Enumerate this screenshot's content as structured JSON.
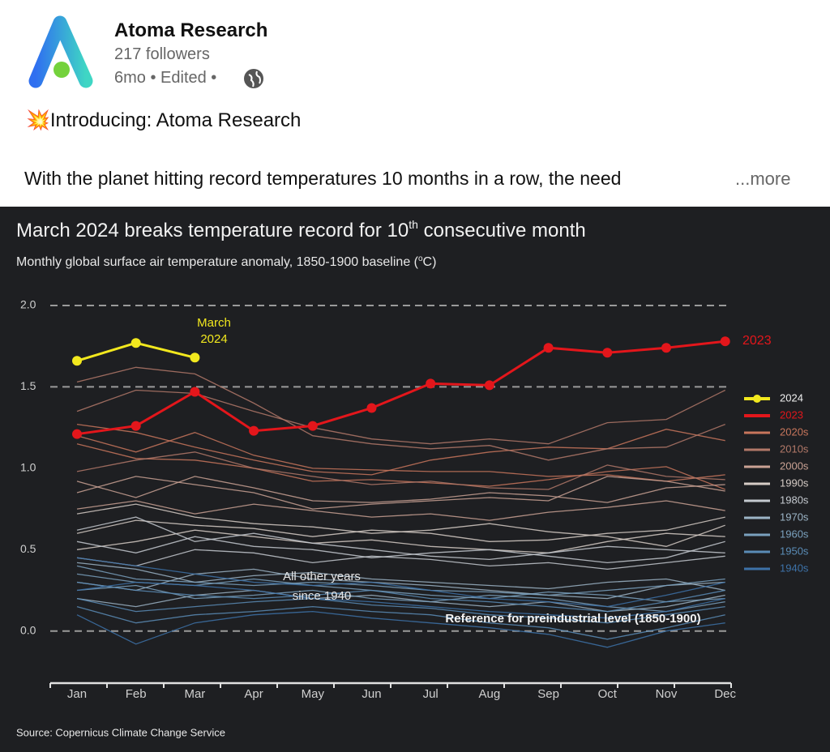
{
  "post": {
    "author": "Atoma Research",
    "followers": "217 followers",
    "time": "6mo",
    "edited": "Edited",
    "headline": "Introducing: Atoma Research",
    "body": "With the planet hitting record temperatures 10 months in a row, the need",
    "more": "...more"
  },
  "chart_data": {
    "type": "line",
    "title": [
      "March 2024 breaks temperature record for 10",
      "th",
      " consecutive month"
    ],
    "subtitle": [
      "Monthly global surface air temperature anomaly, 1850-1900 baseline (",
      "o",
      "C)"
    ],
    "source": "Source: Copernicus Climate Change Service",
    "annotations": {
      "march": [
        "March",
        "2024"
      ],
      "others": [
        "All other years",
        "since 1940"
      ],
      "reference": "Reference for preindustrial level (1850-1900)"
    },
    "categories": [
      "Jan",
      "Feb",
      "Mar",
      "Apr",
      "May",
      "Jun",
      "Jul",
      "Aug",
      "Sep",
      "Oct",
      "Nov",
      "Dec"
    ],
    "ylim": [
      -0.3,
      2.0
    ],
    "yticks": [
      {
        "value": 2,
        "label": "2.0"
      },
      1.5,
      {
        "value": 1,
        "label": "1.0"
      },
      0.5,
      {
        "value": 0,
        "label": "0.0"
      }
    ],
    "grid_at": [
      2,
      1.5,
      0
    ],
    "series": [
      {
        "name": "2024",
        "color": "#f2e81e",
        "values": [
          1.66,
          1.77,
          1.68,
          null,
          null,
          null,
          null,
          null,
          null,
          null,
          null,
          null
        ]
      },
      {
        "name": "2023",
        "color": "#e3161b",
        "values": [
          1.21,
          1.26,
          1.47,
          1.23,
          1.26,
          1.37,
          1.52,
          1.51,
          1.74,
          1.71,
          1.74,
          1.78
        ]
      }
    ],
    "decades": [
      {
        "name": "2020s",
        "color": "#c8765c",
        "lines": [
          [
            1.27,
            1.22,
            1.13,
            1.05,
            0.98,
            0.96,
            1.05,
            1.1,
            1.13,
            1.12,
            1.24,
            1.17
          ],
          [
            1.15,
            1.06,
            1.05,
            1.0,
            0.92,
            0.93,
            0.91,
            0.89,
            0.93,
            0.98,
            1.01,
            0.87
          ],
          [
            1.2,
            1.1,
            1.22,
            1.08,
            1.0,
            0.99,
            0.98,
            0.98,
            0.95,
            0.96,
            0.92,
            0.96
          ]
        ]
      },
      {
        "name": "2010s",
        "color": "#b27868",
        "lines": [
          [
            1.53,
            1.62,
            1.58,
            1.4,
            1.2,
            1.15,
            1.12,
            1.14,
            1.05,
            1.12,
            1.13,
            1.27
          ],
          [
            1.35,
            1.48,
            1.46,
            1.35,
            1.25,
            1.18,
            1.15,
            1.18,
            1.15,
            1.28,
            1.3,
            1.48
          ],
          [
            0.98,
            1.05,
            1.1,
            1.0,
            0.95,
            0.9,
            0.92,
            0.88,
            0.87,
            1.02,
            0.95,
            0.93
          ]
        ]
      },
      {
        "name": "2000s",
        "color": "#caa294",
        "lines": [
          [
            0.85,
            0.95,
            0.9,
            0.85,
            0.75,
            0.78,
            0.8,
            0.82,
            0.8,
            0.95,
            0.92,
            0.86
          ],
          [
            0.92,
            0.82,
            0.95,
            0.88,
            0.8,
            0.79,
            0.81,
            0.85,
            0.83,
            0.79,
            0.88,
            0.9
          ],
          [
            0.75,
            0.8,
            0.72,
            0.78,
            0.74,
            0.7,
            0.72,
            0.68,
            0.73,
            0.76,
            0.8,
            0.74
          ]
        ]
      },
      {
        "name": "1990s",
        "color": "#d6ccc6",
        "lines": [
          [
            0.6,
            0.68,
            0.65,
            0.63,
            0.58,
            0.62,
            0.6,
            0.55,
            0.56,
            0.6,
            0.62,
            0.7
          ],
          [
            0.72,
            0.78,
            0.7,
            0.66,
            0.64,
            0.6,
            0.62,
            0.66,
            0.61,
            0.58,
            0.52,
            0.65
          ],
          [
            0.5,
            0.55,
            0.62,
            0.58,
            0.54,
            0.56,
            0.52,
            0.5,
            0.48,
            0.55,
            0.6,
            0.58
          ]
        ]
      },
      {
        "name": "1980s",
        "color": "#c4c9cf",
        "lines": [
          [
            0.55,
            0.48,
            0.58,
            0.52,
            0.5,
            0.45,
            0.48,
            0.5,
            0.46,
            0.42,
            0.45,
            0.55
          ],
          [
            0.62,
            0.7,
            0.55,
            0.6,
            0.54,
            0.5,
            0.46,
            0.44,
            0.48,
            0.52,
            0.5,
            0.48
          ],
          [
            0.45,
            0.4,
            0.5,
            0.48,
            0.42,
            0.46,
            0.44,
            0.4,
            0.42,
            0.38,
            0.42,
            0.46
          ]
        ]
      },
      {
        "name": "1970s",
        "color": "#9cb4c6",
        "lines": [
          [
            0.3,
            0.25,
            0.35,
            0.38,
            0.32,
            0.3,
            0.28,
            0.25,
            0.22,
            0.2,
            0.28,
            0.3
          ],
          [
            0.42,
            0.38,
            0.3,
            0.34,
            0.36,
            0.32,
            0.3,
            0.28,
            0.26,
            0.3,
            0.32,
            0.25
          ],
          [
            0.2,
            0.15,
            0.22,
            0.25,
            0.2,
            0.22,
            0.18,
            0.15,
            0.18,
            0.12,
            0.15,
            0.22
          ]
        ]
      },
      {
        "name": "1960s",
        "color": "#7aa1be",
        "lines": [
          [
            0.35,
            0.3,
            0.28,
            0.32,
            0.28,
            0.25,
            0.22,
            0.2,
            0.24,
            0.22,
            0.18,
            0.2
          ],
          [
            0.25,
            0.28,
            0.2,
            0.22,
            0.25,
            0.2,
            0.18,
            0.22,
            0.2,
            0.15,
            0.12,
            0.18
          ],
          [
            0.4,
            0.32,
            0.3,
            0.28,
            0.3,
            0.28,
            0.25,
            0.24,
            0.22,
            0.25,
            0.28,
            0.32
          ]
        ]
      },
      {
        "name": "1950s",
        "color": "#5a8cb6",
        "lines": [
          [
            0.2,
            0.12,
            0.15,
            0.18,
            0.2,
            0.16,
            0.14,
            0.1,
            0.08,
            0.05,
            0.1,
            0.15
          ],
          [
            0.3,
            0.25,
            0.22,
            0.2,
            0.22,
            0.25,
            0.2,
            0.18,
            0.15,
            0.12,
            0.18,
            0.25
          ],
          [
            0.15,
            0.05,
            0.1,
            0.12,
            0.15,
            0.12,
            0.1,
            0.05,
            0.02,
            -0.05,
            0.02,
            0.1
          ]
        ]
      },
      {
        "name": "1940s",
        "color": "#3d72a8",
        "lines": [
          [
            0.45,
            0.4,
            0.35,
            0.3,
            0.28,
            0.3,
            0.25,
            0.2,
            0.18,
            0.15,
            0.22,
            0.3
          ],
          [
            0.25,
            0.3,
            0.28,
            0.25,
            0.2,
            0.18,
            0.15,
            0.12,
            0.1,
            0.08,
            0.12,
            0.2
          ],
          [
            0.1,
            -0.08,
            0.05,
            0.1,
            0.12,
            0.08,
            0.05,
            0.02,
            -0.02,
            -0.1,
            0.0,
            0.05
          ]
        ]
      }
    ]
  }
}
